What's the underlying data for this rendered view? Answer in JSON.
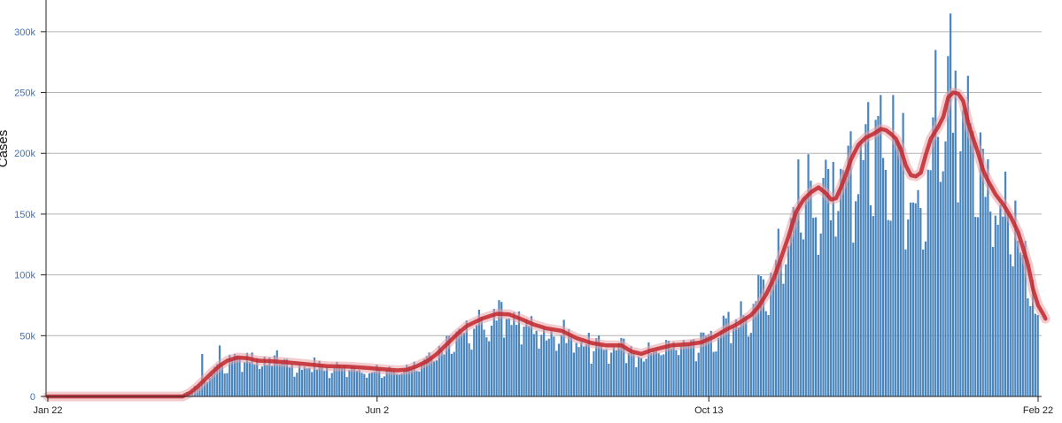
{
  "chart_data": {
    "type": "bar",
    "ylabel": "Cases",
    "ylim": [
      0,
      325000
    ],
    "y_ticks": [
      {
        "value": 0,
        "label": "0"
      },
      {
        "value": 50000,
        "label": "50k"
      },
      {
        "value": 100000,
        "label": "100k"
      },
      {
        "value": 150000,
        "label": "150k"
      },
      {
        "value": 200000,
        "label": "200k"
      },
      {
        "value": 250000,
        "label": "250k"
      },
      {
        "value": 300000,
        "label": "300k"
      }
    ],
    "x_ticks": [
      {
        "day": 0,
        "label": "Jan 22"
      },
      {
        "day": 132,
        "label": "Jun 2"
      },
      {
        "day": 265,
        "label": "Oct 13"
      },
      {
        "day": 397,
        "label": "Feb 22"
      }
    ],
    "grid": true,
    "series": [
      {
        "kind": "bar",
        "color": "#4a86bd",
        "anchors": [
          [
            0,
            0
          ],
          [
            39,
            0
          ],
          [
            50,
            0
          ],
          [
            54,
            1000
          ],
          [
            58,
            6000
          ],
          [
            62,
            12000
          ],
          [
            66,
            20000
          ],
          [
            70,
            26000
          ],
          [
            74,
            31000
          ],
          [
            78,
            33000
          ],
          [
            84,
            30000
          ],
          [
            90,
            29000
          ],
          [
            96,
            28000
          ],
          [
            104,
            26000
          ],
          [
            112,
            25000
          ],
          [
            120,
            24000
          ],
          [
            128,
            23000
          ],
          [
            134,
            22000
          ],
          [
            140,
            22000
          ],
          [
            146,
            24000
          ],
          [
            150,
            28000
          ],
          [
            156,
            36000
          ],
          [
            162,
            47000
          ],
          [
            168,
            56000
          ],
          [
            174,
            63000
          ],
          [
            180,
            68000
          ],
          [
            185,
            68000
          ],
          [
            190,
            65000
          ],
          [
            195,
            59000
          ],
          [
            200,
            55000
          ],
          [
            206,
            55000
          ],
          [
            212,
            49000
          ],
          [
            218,
            44000
          ],
          [
            224,
            42000
          ],
          [
            230,
            43000
          ],
          [
            234,
            38000
          ],
          [
            238,
            37000
          ],
          [
            243,
            40000
          ],
          [
            250,
            44000
          ],
          [
            257,
            46000
          ],
          [
            262,
            48000
          ],
          [
            267,
            54000
          ],
          [
            272,
            60000
          ],
          [
            276,
            66000
          ],
          [
            280,
            74000
          ],
          [
            285,
            87000
          ],
          [
            290,
            105000
          ],
          [
            295,
            130000
          ],
          [
            300,
            155000
          ],
          [
            305,
            172000
          ],
          [
            309,
            177000
          ],
          [
            313,
            168000
          ],
          [
            317,
            165000
          ],
          [
            321,
            183000
          ],
          [
            326,
            205000
          ],
          [
            330,
            215000
          ],
          [
            334,
            220000
          ],
          [
            339,
            218000
          ],
          [
            343,
            205000
          ],
          [
            347,
            186000
          ],
          [
            351,
            182000
          ],
          [
            355,
            210000
          ],
          [
            360,
            225000
          ],
          [
            364,
            248000
          ],
          [
            368,
            245000
          ],
          [
            372,
            215000
          ],
          [
            376,
            187000
          ],
          [
            381,
            170000
          ],
          [
            386,
            153000
          ],
          [
            390,
            123000
          ],
          [
            394,
            97000
          ],
          [
            397,
            80000
          ]
        ],
        "spikes": [
          [
            62,
            35000
          ],
          [
            69,
            42000
          ],
          [
            92,
            38000
          ],
          [
            107,
            32000
          ],
          [
            161,
            50000
          ],
          [
            179,
            72000
          ],
          [
            236,
            24000
          ],
          [
            293,
            138000
          ],
          [
            301,
            195000
          ],
          [
            328,
            224000
          ],
          [
            334,
            248000
          ],
          [
            339,
            248000
          ],
          [
            356,
            285000
          ],
          [
            361,
            280000
          ],
          [
            362,
            315000
          ],
          [
            370,
            225000
          ],
          [
            396,
            68000
          ]
        ]
      },
      {
        "kind": "line",
        "color": "#c1272d",
        "points": [
          [
            0,
            0
          ],
          [
            54,
            0
          ],
          [
            57,
            3000
          ],
          [
            60,
            8000
          ],
          [
            63,
            14000
          ],
          [
            66,
            20000
          ],
          [
            69,
            25500
          ],
          [
            72,
            29500
          ],
          [
            76,
            32000
          ],
          [
            80,
            31500
          ],
          [
            84,
            29500
          ],
          [
            90,
            29000
          ],
          [
            96,
            28000
          ],
          [
            104,
            26500
          ],
          [
            112,
            25000
          ],
          [
            120,
            24500
          ],
          [
            128,
            23500
          ],
          [
            134,
            22500
          ],
          [
            140,
            21500
          ],
          [
            144,
            22000
          ],
          [
            148,
            25000
          ],
          [
            152,
            29000
          ],
          [
            156,
            35000
          ],
          [
            160,
            43000
          ],
          [
            164,
            51000
          ],
          [
            168,
            58000
          ],
          [
            174,
            64000
          ],
          [
            180,
            68000
          ],
          [
            185,
            67500
          ],
          [
            190,
            63500
          ],
          [
            195,
            59000
          ],
          [
            200,
            56000
          ],
          [
            206,
            54000
          ],
          [
            212,
            48000
          ],
          [
            218,
            44000
          ],
          [
            224,
            42000
          ],
          [
            230,
            42000
          ],
          [
            234,
            37000
          ],
          [
            238,
            35000
          ],
          [
            242,
            38000
          ],
          [
            250,
            42000
          ],
          [
            257,
            43000
          ],
          [
            262,
            44500
          ],
          [
            267,
            49000
          ],
          [
            272,
            55000
          ],
          [
            276,
            59000
          ],
          [
            279,
            63000
          ],
          [
            282,
            67000
          ],
          [
            285,
            74000
          ],
          [
            288,
            84000
          ],
          [
            291,
            97000
          ],
          [
            294,
            114000
          ],
          [
            297,
            132000
          ],
          [
            300,
            152000
          ],
          [
            303,
            162000
          ],
          [
            306,
            168000
          ],
          [
            309,
            172000
          ],
          [
            312,
            167000
          ],
          [
            314,
            162000
          ],
          [
            316,
            163000
          ],
          [
            318,
            172000
          ],
          [
            320,
            183000
          ],
          [
            322,
            195000
          ],
          [
            325,
            207000
          ],
          [
            328,
            213000
          ],
          [
            331,
            216000
          ],
          [
            334,
            220000
          ],
          [
            336,
            219000
          ],
          [
            338,
            216000
          ],
          [
            340,
            212000
          ],
          [
            342,
            203000
          ],
          [
            344,
            190000
          ],
          [
            346,
            182000
          ],
          [
            348,
            181000
          ],
          [
            350,
            184000
          ],
          [
            352,
            199000
          ],
          [
            354,
            212000
          ],
          [
            357,
            222000
          ],
          [
            359,
            230000
          ],
          [
            361,
            246000
          ],
          [
            363,
            250000
          ],
          [
            365,
            249000
          ],
          [
            367,
            243000
          ],
          [
            369,
            225000
          ],
          [
            371,
            212000
          ],
          [
            373,
            200000
          ],
          [
            375,
            186000
          ],
          [
            377,
            177000
          ],
          [
            380,
            166000
          ],
          [
            383,
            158000
          ],
          [
            386,
            148000
          ],
          [
            389,
            135000
          ],
          [
            391,
            122000
          ],
          [
            393,
            108000
          ],
          [
            395,
            88000
          ],
          [
            397,
            75000
          ],
          [
            399,
            68000
          ],
          [
            400,
            64000
          ]
        ]
      }
    ]
  }
}
